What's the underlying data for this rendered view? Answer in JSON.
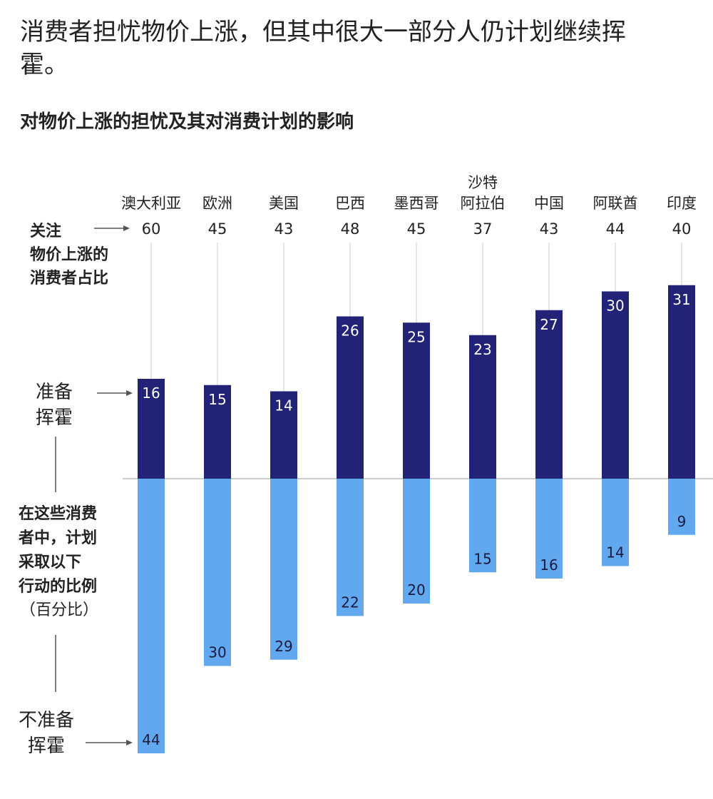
{
  "title": "消费者担忧物价上涨，但其中很大一部分人仍计划继续挥霍。",
  "subtitle": "对物价上涨的担忧及其对消费计划的影响",
  "labels": {
    "concerned": "关注\n物价上涨的\n消费者占比",
    "splurge": "准备\n挥霍",
    "share_planning": "在这些消费\n者中，计划\n采取以下\n行动的比例",
    "percent": "（百分比）",
    "not_splurge": "不准备\n挥霍"
  },
  "colors": {
    "splurge": "#222277",
    "not_splurge": "#62a8ee",
    "axis": "#bbbbbb"
  },
  "chart_data": {
    "type": "bar",
    "stacking": "diverging",
    "categories": [
      "澳大利亚",
      "欧洲",
      "美国",
      "巴西",
      "墨西哥",
      "沙特\n阿拉伯",
      "中国",
      "阿联酋",
      "印度"
    ],
    "concerned_share": [
      60,
      45,
      43,
      48,
      45,
      37,
      43,
      44,
      40
    ],
    "series": [
      {
        "name": "准备挥霍",
        "values": [
          16,
          15,
          14,
          26,
          25,
          23,
          27,
          30,
          31
        ]
      },
      {
        "name": "不准备挥霍",
        "values": [
          44,
          30,
          29,
          22,
          20,
          15,
          16,
          14,
          9
        ]
      }
    ],
    "unit": "百分比",
    "grid": false
  }
}
